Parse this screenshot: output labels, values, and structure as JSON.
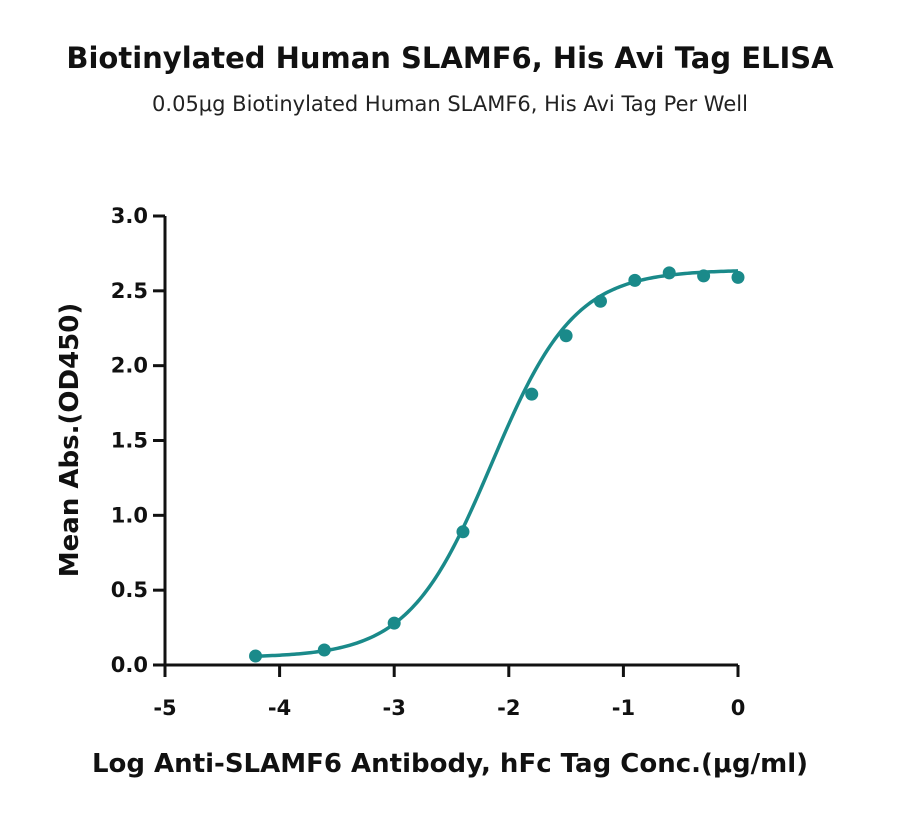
{
  "chart_data": {
    "type": "scatter",
    "title": "Biotinylated Human SLAMF6, His Avi Tag ELISA",
    "subtitle": "0.05μg Biotinylated Human SLAMF6, His Avi Tag Per Well",
    "xlabel": "Log Anti-SLAMF6 Antibody, hFc Tag Conc.(μg/ml)",
    "ylabel": "Mean Abs.(OD450)",
    "xlim": [
      -5,
      0
    ],
    "ylim": [
      0,
      3.0
    ],
    "xticks": [
      "-5",
      "-4",
      "-3",
      "-2",
      "-1",
      "0"
    ],
    "yticks": [
      "0.0",
      "0.5",
      "1.0",
      "1.5",
      "2.0",
      "2.5",
      "3.0"
    ],
    "grid": false,
    "color": "#1a8a8a",
    "series": [
      {
        "x": [
          -4.21,
          -3.61,
          -3.0,
          -2.4,
          -1.8,
          -1.5,
          -1.2,
          -0.9,
          -0.6,
          -0.3,
          0.0
        ],
        "y": [
          0.06,
          0.1,
          0.28,
          0.89,
          1.81,
          2.2,
          2.43,
          2.57,
          2.62,
          2.6,
          2.59
        ],
        "fit": {
          "model": "4PL",
          "bottom": 0.05,
          "top": 2.64,
          "logEC50": -2.15,
          "hill": 1.2
        }
      }
    ]
  }
}
